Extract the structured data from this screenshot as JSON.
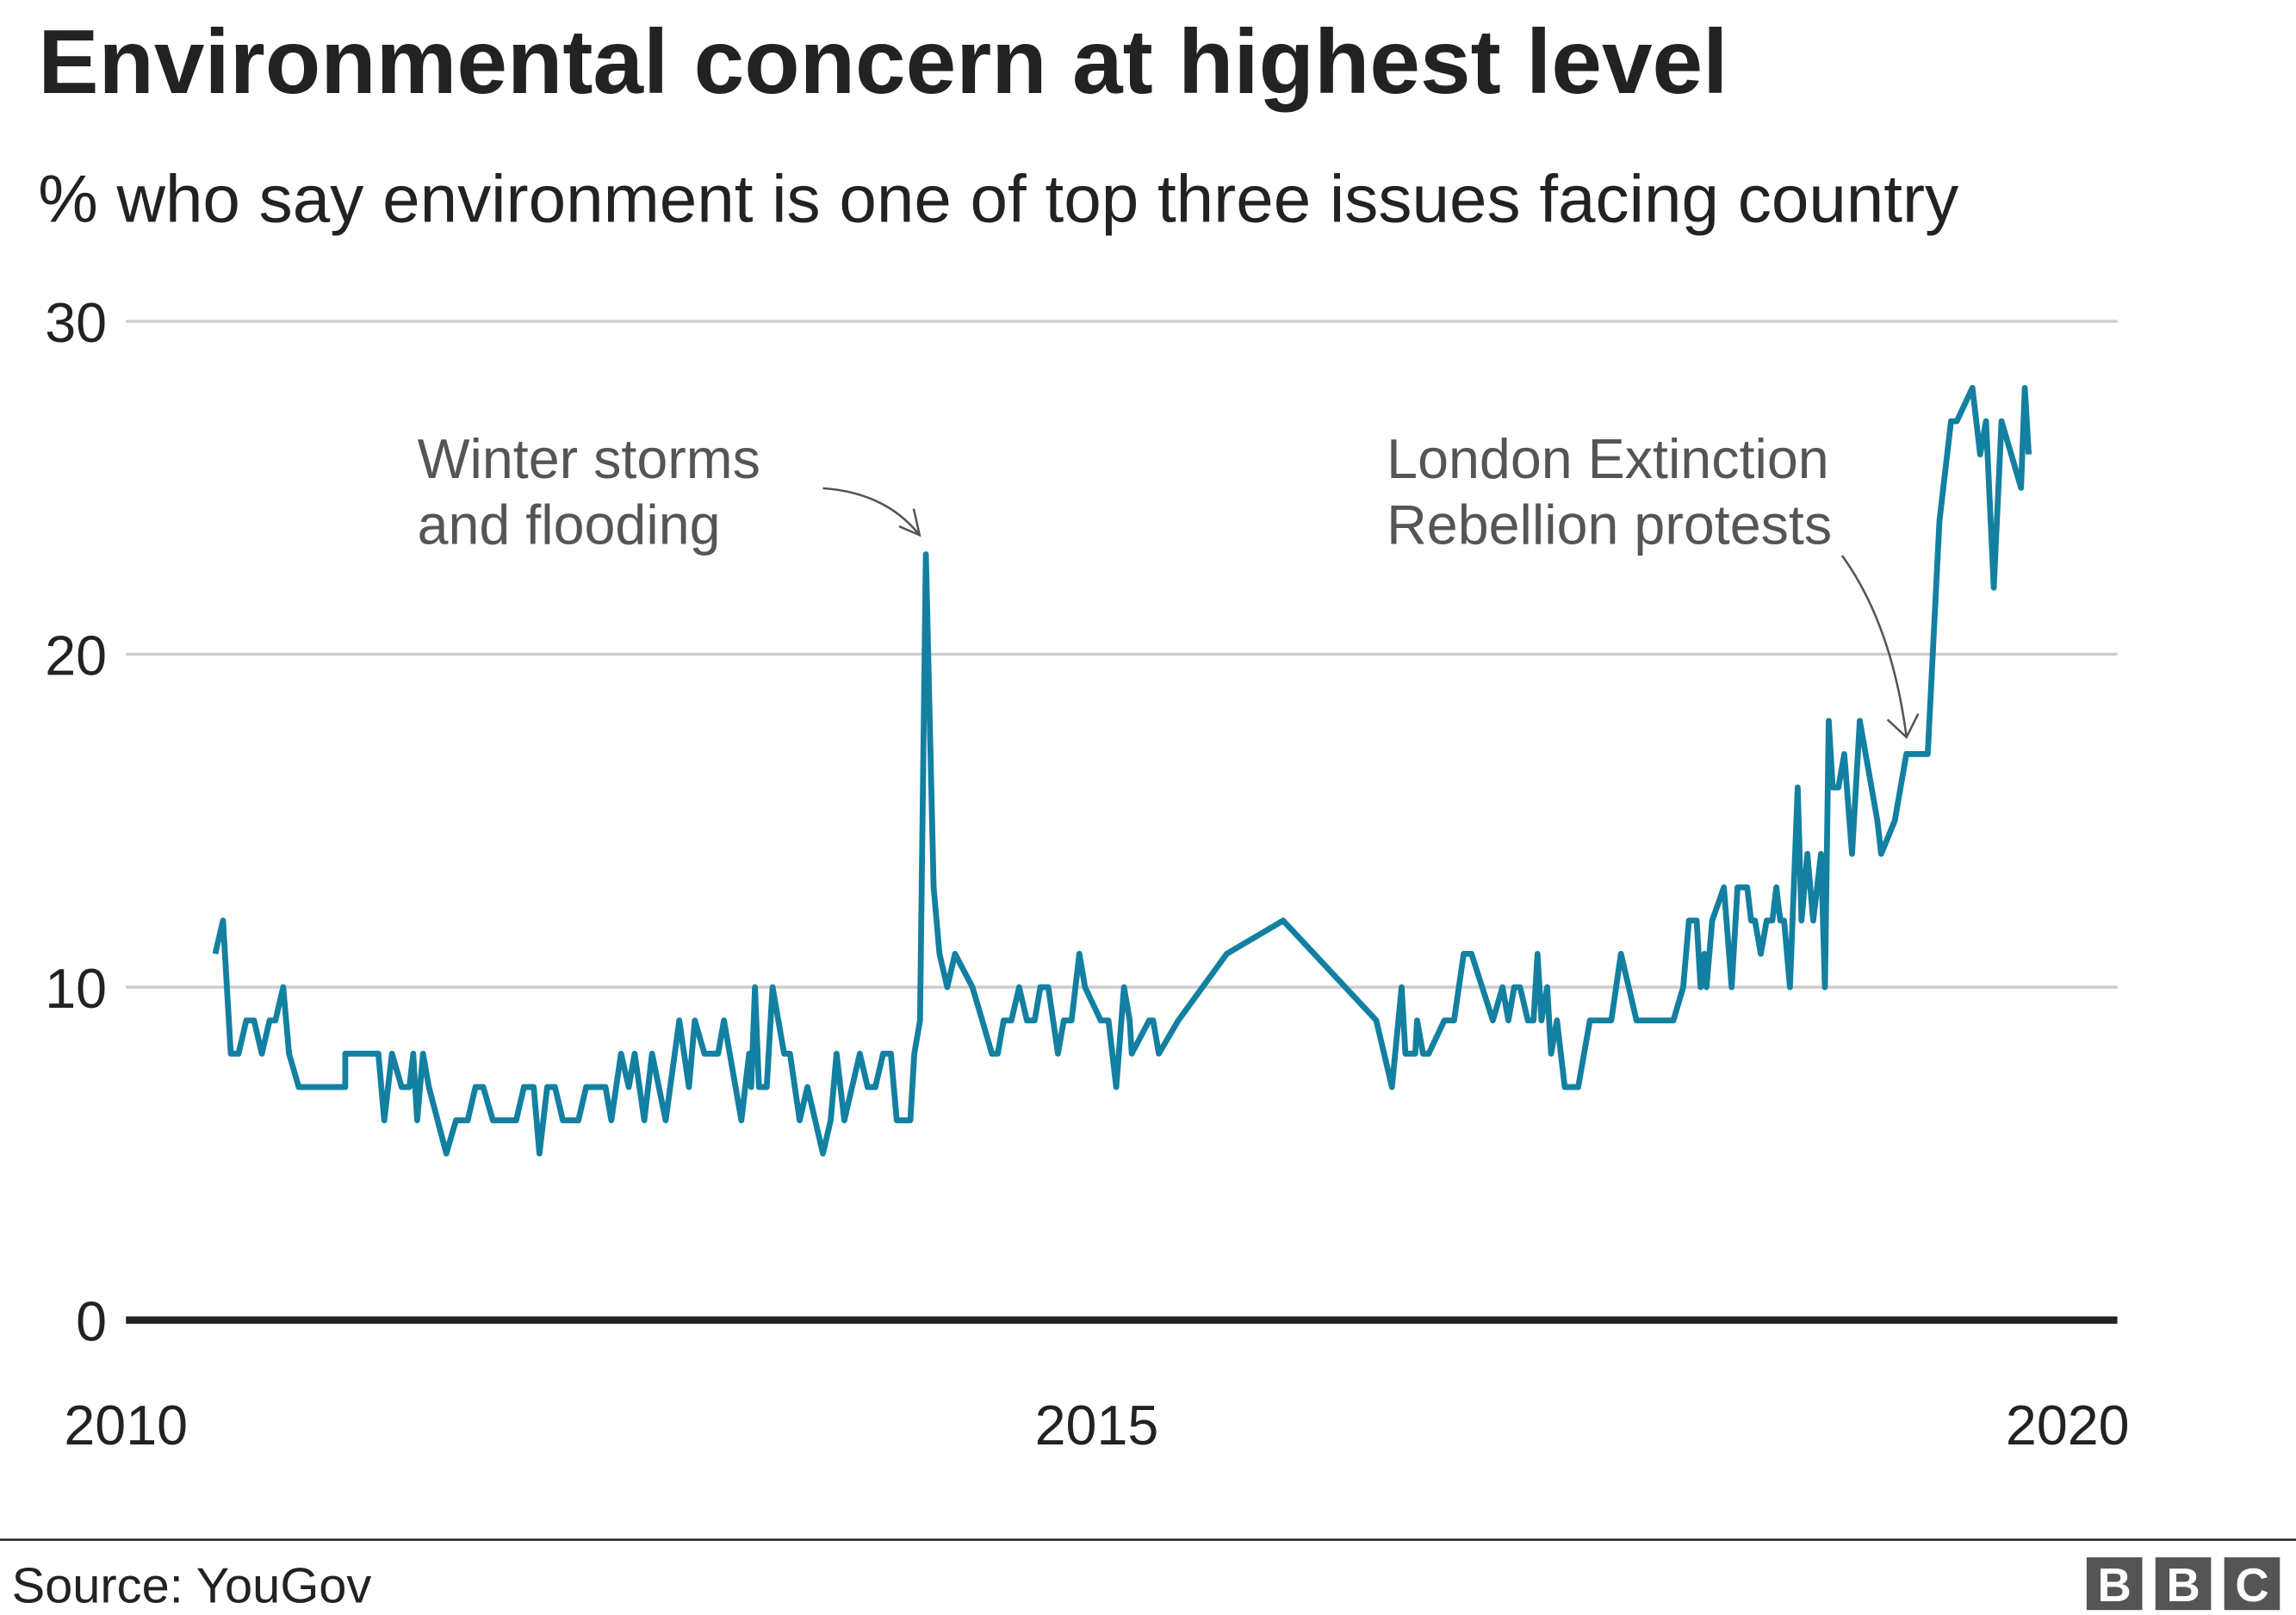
{
  "title": "Environmental concern at highest level",
  "subtitle": "% who say environment is one of top three issues facing country",
  "source": "Source: YouGov",
  "logo": "BBC",
  "colors": {
    "line": "#1380A1",
    "grid": "#cccccc",
    "baseline": "#222222",
    "annotation": "#555555",
    "logo_bg": "#555555"
  },
  "chart_data": {
    "type": "line",
    "title": "Environmental concern at highest level",
    "subtitle": "% who say environment is one of top three issues facing country",
    "xlabel": "",
    "ylabel": "",
    "xlim": [
      2010,
      2020
    ],
    "ylim": [
      0,
      30
    ],
    "x_ticks": [
      "2010",
      "2015",
      "2020"
    ],
    "y_ticks": [
      "0",
      "10",
      "20",
      "30"
    ],
    "grid": true,
    "annotations": [
      {
        "text_lines": [
          "Winter storms",
          "and flooding"
        ],
        "x": 2014.12,
        "y": 23
      },
      {
        "text_lines": [
          "London Extinction",
          "Rebellion protests"
        ],
        "x": 2019.17,
        "y": 17
      }
    ],
    "series": [
      {
        "points": [
          [
            2010.46,
            11
          ],
          [
            2010.5,
            12
          ],
          [
            2010.54,
            8
          ],
          [
            2010.58,
            8
          ],
          [
            2010.62,
            9
          ],
          [
            2010.66,
            9
          ],
          [
            2010.7,
            8
          ],
          [
            2010.74,
            9
          ],
          [
            2010.77,
            9
          ],
          [
            2010.81,
            10
          ],
          [
            2010.84,
            8
          ],
          [
            2010.89,
            7
          ],
          [
            2011.13,
            7
          ],
          [
            2011.13,
            8
          ],
          [
            2011.3,
            8
          ],
          [
            2011.33,
            6
          ],
          [
            2011.37,
            8
          ],
          [
            2011.42,
            7
          ],
          [
            2011.46,
            7
          ],
          [
            2011.48,
            8
          ],
          [
            2011.5,
            6
          ],
          [
            2011.53,
            8
          ],
          [
            2011.56,
            7
          ],
          [
            2011.65,
            5
          ],
          [
            2011.7,
            6
          ],
          [
            2011.76,
            6
          ],
          [
            2011.8,
            7
          ],
          [
            2011.84,
            7
          ],
          [
            2011.89,
            6
          ],
          [
            2012.01,
            6
          ],
          [
            2012.05,
            7
          ],
          [
            2012.1,
            7
          ],
          [
            2012.13,
            5
          ],
          [
            2012.17,
            7
          ],
          [
            2012.21,
            7
          ],
          [
            2012.25,
            6
          ],
          [
            2012.33,
            6
          ],
          [
            2012.37,
            7
          ],
          [
            2012.47,
            7
          ],
          [
            2012.5,
            6
          ],
          [
            2012.55,
            8
          ],
          [
            2012.59,
            7
          ],
          [
            2012.62,
            8
          ],
          [
            2012.67,
            6
          ],
          [
            2012.71,
            8
          ],
          [
            2012.78,
            6
          ],
          [
            2012.85,
            9
          ],
          [
            2012.9,
            7
          ],
          [
            2012.93,
            9
          ],
          [
            2012.98,
            8
          ],
          [
            2013.05,
            8
          ],
          [
            2013.08,
            9
          ],
          [
            2013.17,
            6
          ],
          [
            2013.21,
            8
          ],
          [
            2013.22,
            7
          ],
          [
            2013.24,
            10
          ],
          [
            2013.26,
            7
          ],
          [
            2013.3,
            7
          ],
          [
            2013.33,
            10
          ],
          [
            2013.39,
            8
          ],
          [
            2013.42,
            8
          ],
          [
            2013.47,
            6
          ],
          [
            2013.51,
            7
          ],
          [
            2013.59,
            5
          ],
          [
            2013.63,
            6
          ],
          [
            2013.66,
            8
          ],
          [
            2013.7,
            6
          ],
          [
            2013.78,
            8
          ],
          [
            2013.82,
            7
          ],
          [
            2013.86,
            7
          ],
          [
            2013.9,
            8
          ],
          [
            2013.94,
            8
          ],
          [
            2013.97,
            6
          ],
          [
            2014.04,
            6
          ],
          [
            2014.06,
            8
          ],
          [
            2014.09,
            9
          ],
          [
            2014.12,
            23
          ],
          [
            2014.16,
            13
          ],
          [
            2014.19,
            11
          ],
          [
            2014.23,
            10
          ],
          [
            2014.27,
            11
          ],
          [
            2014.36,
            10
          ],
          [
            2014.41,
            9
          ],
          [
            2014.46,
            8
          ],
          [
            2014.49,
            8
          ],
          [
            2014.52,
            9
          ],
          [
            2014.56,
            9
          ],
          [
            2014.6,
            10
          ],
          [
            2014.64,
            9
          ],
          [
            2014.68,
            9
          ],
          [
            2014.71,
            10
          ],
          [
            2014.75,
            10
          ],
          [
            2014.8,
            8
          ],
          [
            2014.83,
            9
          ],
          [
            2014.87,
            9
          ],
          [
            2014.91,
            11
          ],
          [
            2014.94,
            10
          ],
          [
            2015.02,
            9
          ],
          [
            2015.06,
            9
          ],
          [
            2015.1,
            7
          ],
          [
            2015.14,
            10
          ],
          [
            2015.17,
            9
          ],
          [
            2015.18,
            8
          ],
          [
            2015.27,
            9
          ],
          [
            2015.29,
            9
          ],
          [
            2015.32,
            8
          ],
          [
            2015.42,
            9
          ],
          [
            2015.67,
            11
          ],
          [
            2015.96,
            12
          ],
          [
            2016.44,
            9
          ],
          [
            2016.52,
            7
          ],
          [
            2016.57,
            10
          ],
          [
            2016.59,
            8
          ],
          [
            2016.64,
            8
          ],
          [
            2016.65,
            9
          ],
          [
            2016.68,
            8
          ],
          [
            2016.71,
            8
          ],
          [
            2016.79,
            9
          ],
          [
            2016.84,
            9
          ],
          [
            2016.89,
            11
          ],
          [
            2016.93,
            11
          ],
          [
            2017.04,
            9
          ],
          [
            2017.09,
            10
          ],
          [
            2017.12,
            9
          ],
          [
            2017.15,
            10
          ],
          [
            2017.18,
            10
          ],
          [
            2017.22,
            9
          ],
          [
            2017.25,
            9
          ],
          [
            2017.27,
            11
          ],
          [
            2017.29,
            9
          ],
          [
            2017.32,
            10
          ],
          [
            2017.34,
            8
          ],
          [
            2017.37,
            9
          ],
          [
            2017.41,
            7
          ],
          [
            2017.48,
            7
          ],
          [
            2017.54,
            9
          ],
          [
            2017.65,
            9
          ],
          [
            2017.7,
            11
          ],
          [
            2017.78,
            9
          ],
          [
            2017.97,
            9
          ],
          [
            2018.02,
            10
          ],
          [
            2018.05,
            12
          ],
          [
            2018.09,
            12
          ],
          [
            2018.11,
            10
          ],
          [
            2018.13,
            11
          ],
          [
            2018.14,
            10
          ],
          [
            2018.17,
            12
          ],
          [
            2018.23,
            13
          ],
          [
            2018.27,
            10
          ],
          [
            2018.3,
            13
          ],
          [
            2018.35,
            13
          ],
          [
            2018.37,
            12
          ],
          [
            2018.39,
            12
          ],
          [
            2018.42,
            11
          ],
          [
            2018.45,
            12
          ],
          [
            2018.48,
            12
          ],
          [
            2018.5,
            13
          ],
          [
            2018.52,
            12
          ],
          [
            2018.54,
            12
          ],
          [
            2018.57,
            10
          ],
          [
            2018.61,
            16
          ],
          [
            2018.63,
            12
          ],
          [
            2018.66,
            14
          ],
          [
            2018.69,
            12
          ],
          [
            2018.73,
            14
          ],
          [
            2018.75,
            10
          ],
          [
            2018.77,
            18
          ],
          [
            2018.79,
            16
          ],
          [
            2018.82,
            16
          ],
          [
            2018.85,
            17
          ],
          [
            2018.89,
            14
          ],
          [
            2018.93,
            18
          ],
          [
            2019.02,
            15
          ],
          [
            2019.04,
            14
          ],
          [
            2019.11,
            15
          ],
          [
            2019.17,
            17
          ],
          [
            2019.28,
            17
          ],
          [
            2019.34,
            24
          ],
          [
            2019.4,
            27
          ],
          [
            2019.43,
            27
          ],
          [
            2019.51,
            28
          ],
          [
            2019.55,
            26
          ],
          [
            2019.58,
            27
          ],
          [
            2019.62,
            22
          ],
          [
            2019.66,
            27
          ],
          [
            2019.76,
            25
          ],
          [
            2019.78,
            28
          ],
          [
            2019.8,
            26
          ]
        ]
      }
    ]
  }
}
